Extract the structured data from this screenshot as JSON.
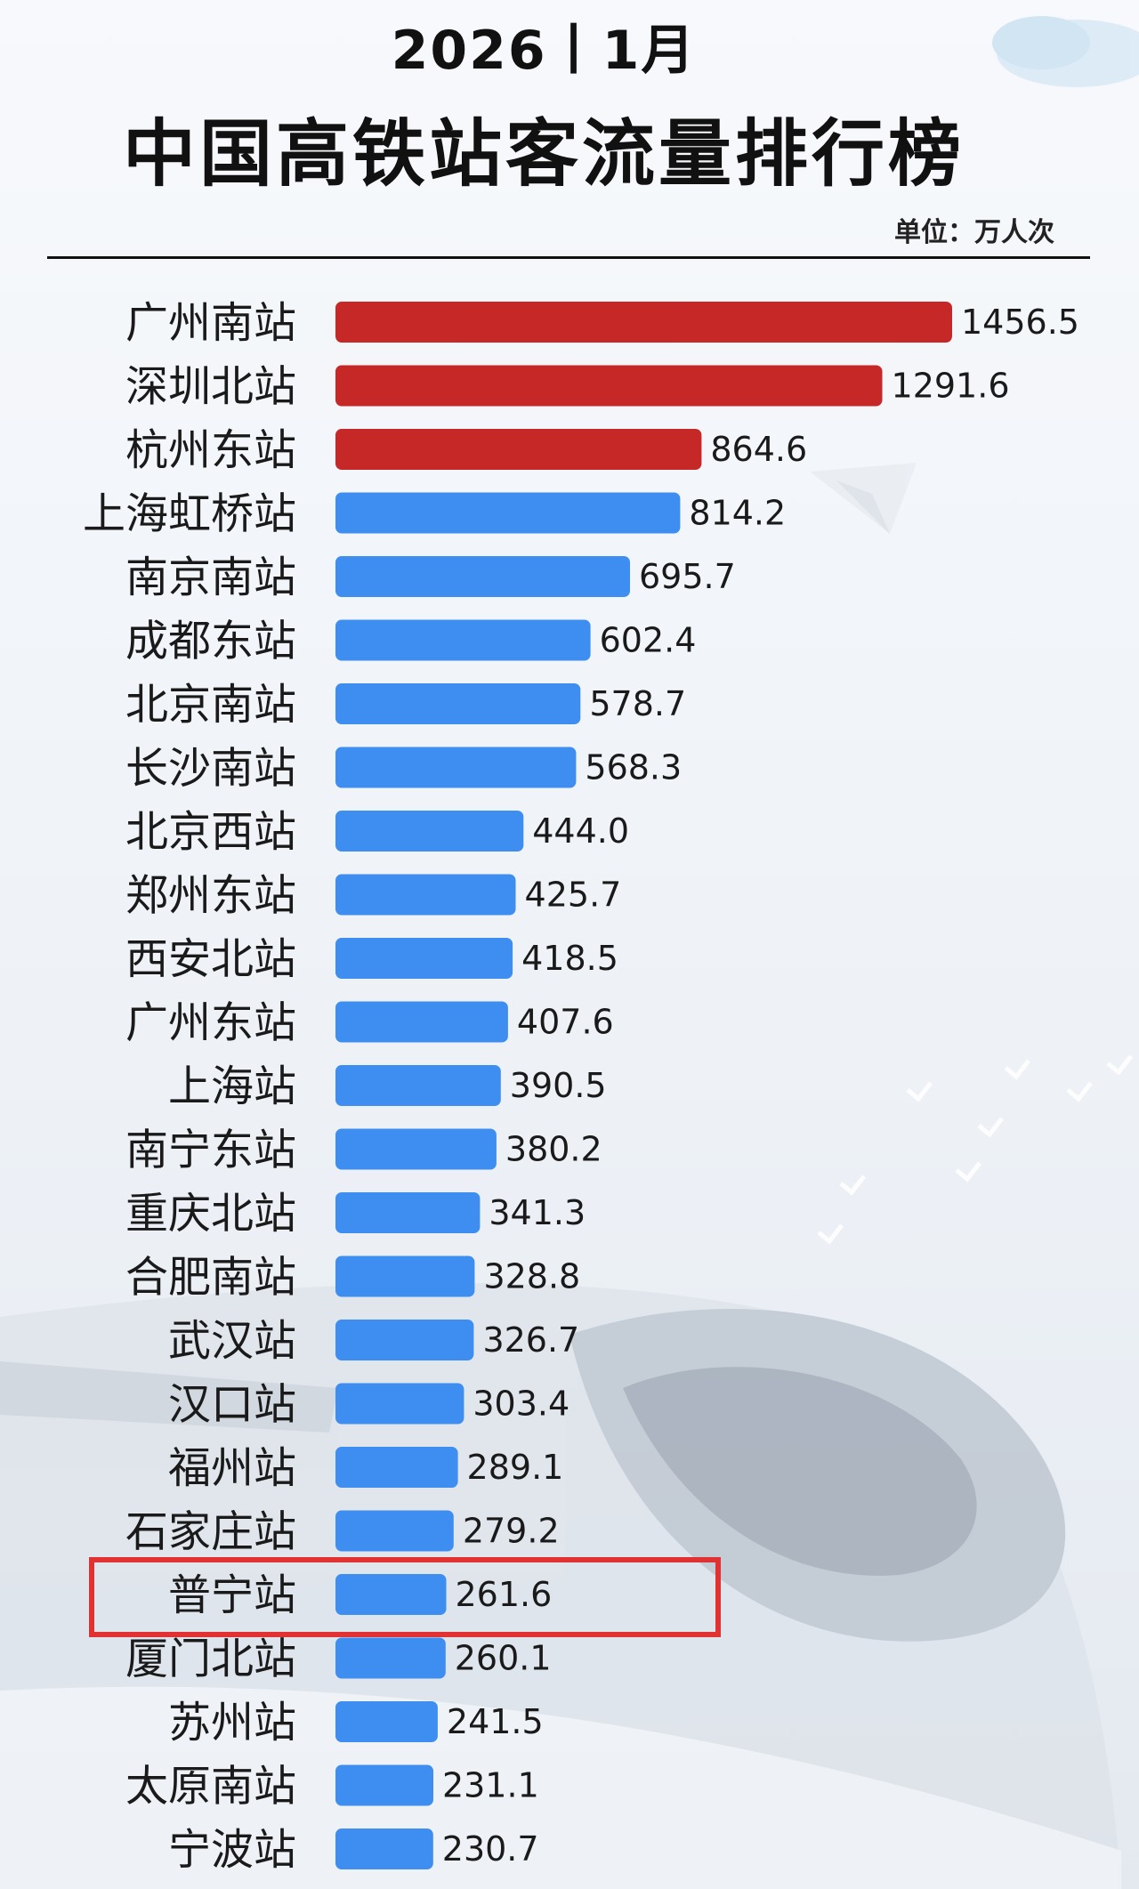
{
  "header": {
    "year_month": "2026丨1月",
    "title": "中国高铁站客流量排行榜",
    "unit": "单位：万人次"
  },
  "colors": {
    "top3": "#c62828",
    "others": "#3d8ef0",
    "highlight_border": "#e03232"
  },
  "highlight": {
    "station": "普宁站"
  },
  "chart_data": {
    "type": "bar",
    "orientation": "horizontal",
    "title": "中国高铁站客流量排行榜",
    "subtitle": "2026丨1月",
    "unit": "万人次",
    "categories": [
      "广州南站",
      "深圳北站",
      "杭州东站",
      "上海虹桥站",
      "南京南站",
      "成都东站",
      "北京南站",
      "长沙南站",
      "北京西站",
      "郑州东站",
      "西安北站",
      "广州东站",
      "上海站",
      "南宁东站",
      "重庆北站",
      "合肥南站",
      "武汉站",
      "汉口站",
      "福州站",
      "石家庄站",
      "普宁站",
      "厦门北站",
      "苏州站",
      "太原南站",
      "宁波站"
    ],
    "values": [
      1456.5,
      1291.6,
      864.6,
      814.2,
      695.7,
      602.4,
      578.7,
      568.3,
      444.0,
      425.7,
      418.5,
      407.6,
      390.5,
      380.2,
      341.3,
      328.8,
      326.7,
      303.4,
      289.1,
      279.2,
      261.6,
      260.1,
      241.5,
      231.1,
      230.7
    ],
    "value_labels": [
      "1456.5",
      "1291.6",
      "864.6",
      "814.2",
      "695.7",
      "602.4",
      "578.7",
      "568.3",
      "444.0",
      "425.7",
      "418.5",
      "407.6",
      "390.5",
      "380.2",
      "341.3",
      "328.8",
      "326.7",
      "303.4",
      "289.1",
      "279.2",
      "261.6",
      "260.1",
      "241.5",
      "231.1",
      "230.7"
    ],
    "highlighted_top_count": 3,
    "xlim": [
      0,
      1456.5
    ],
    "grid": false,
    "legend": "none"
  }
}
